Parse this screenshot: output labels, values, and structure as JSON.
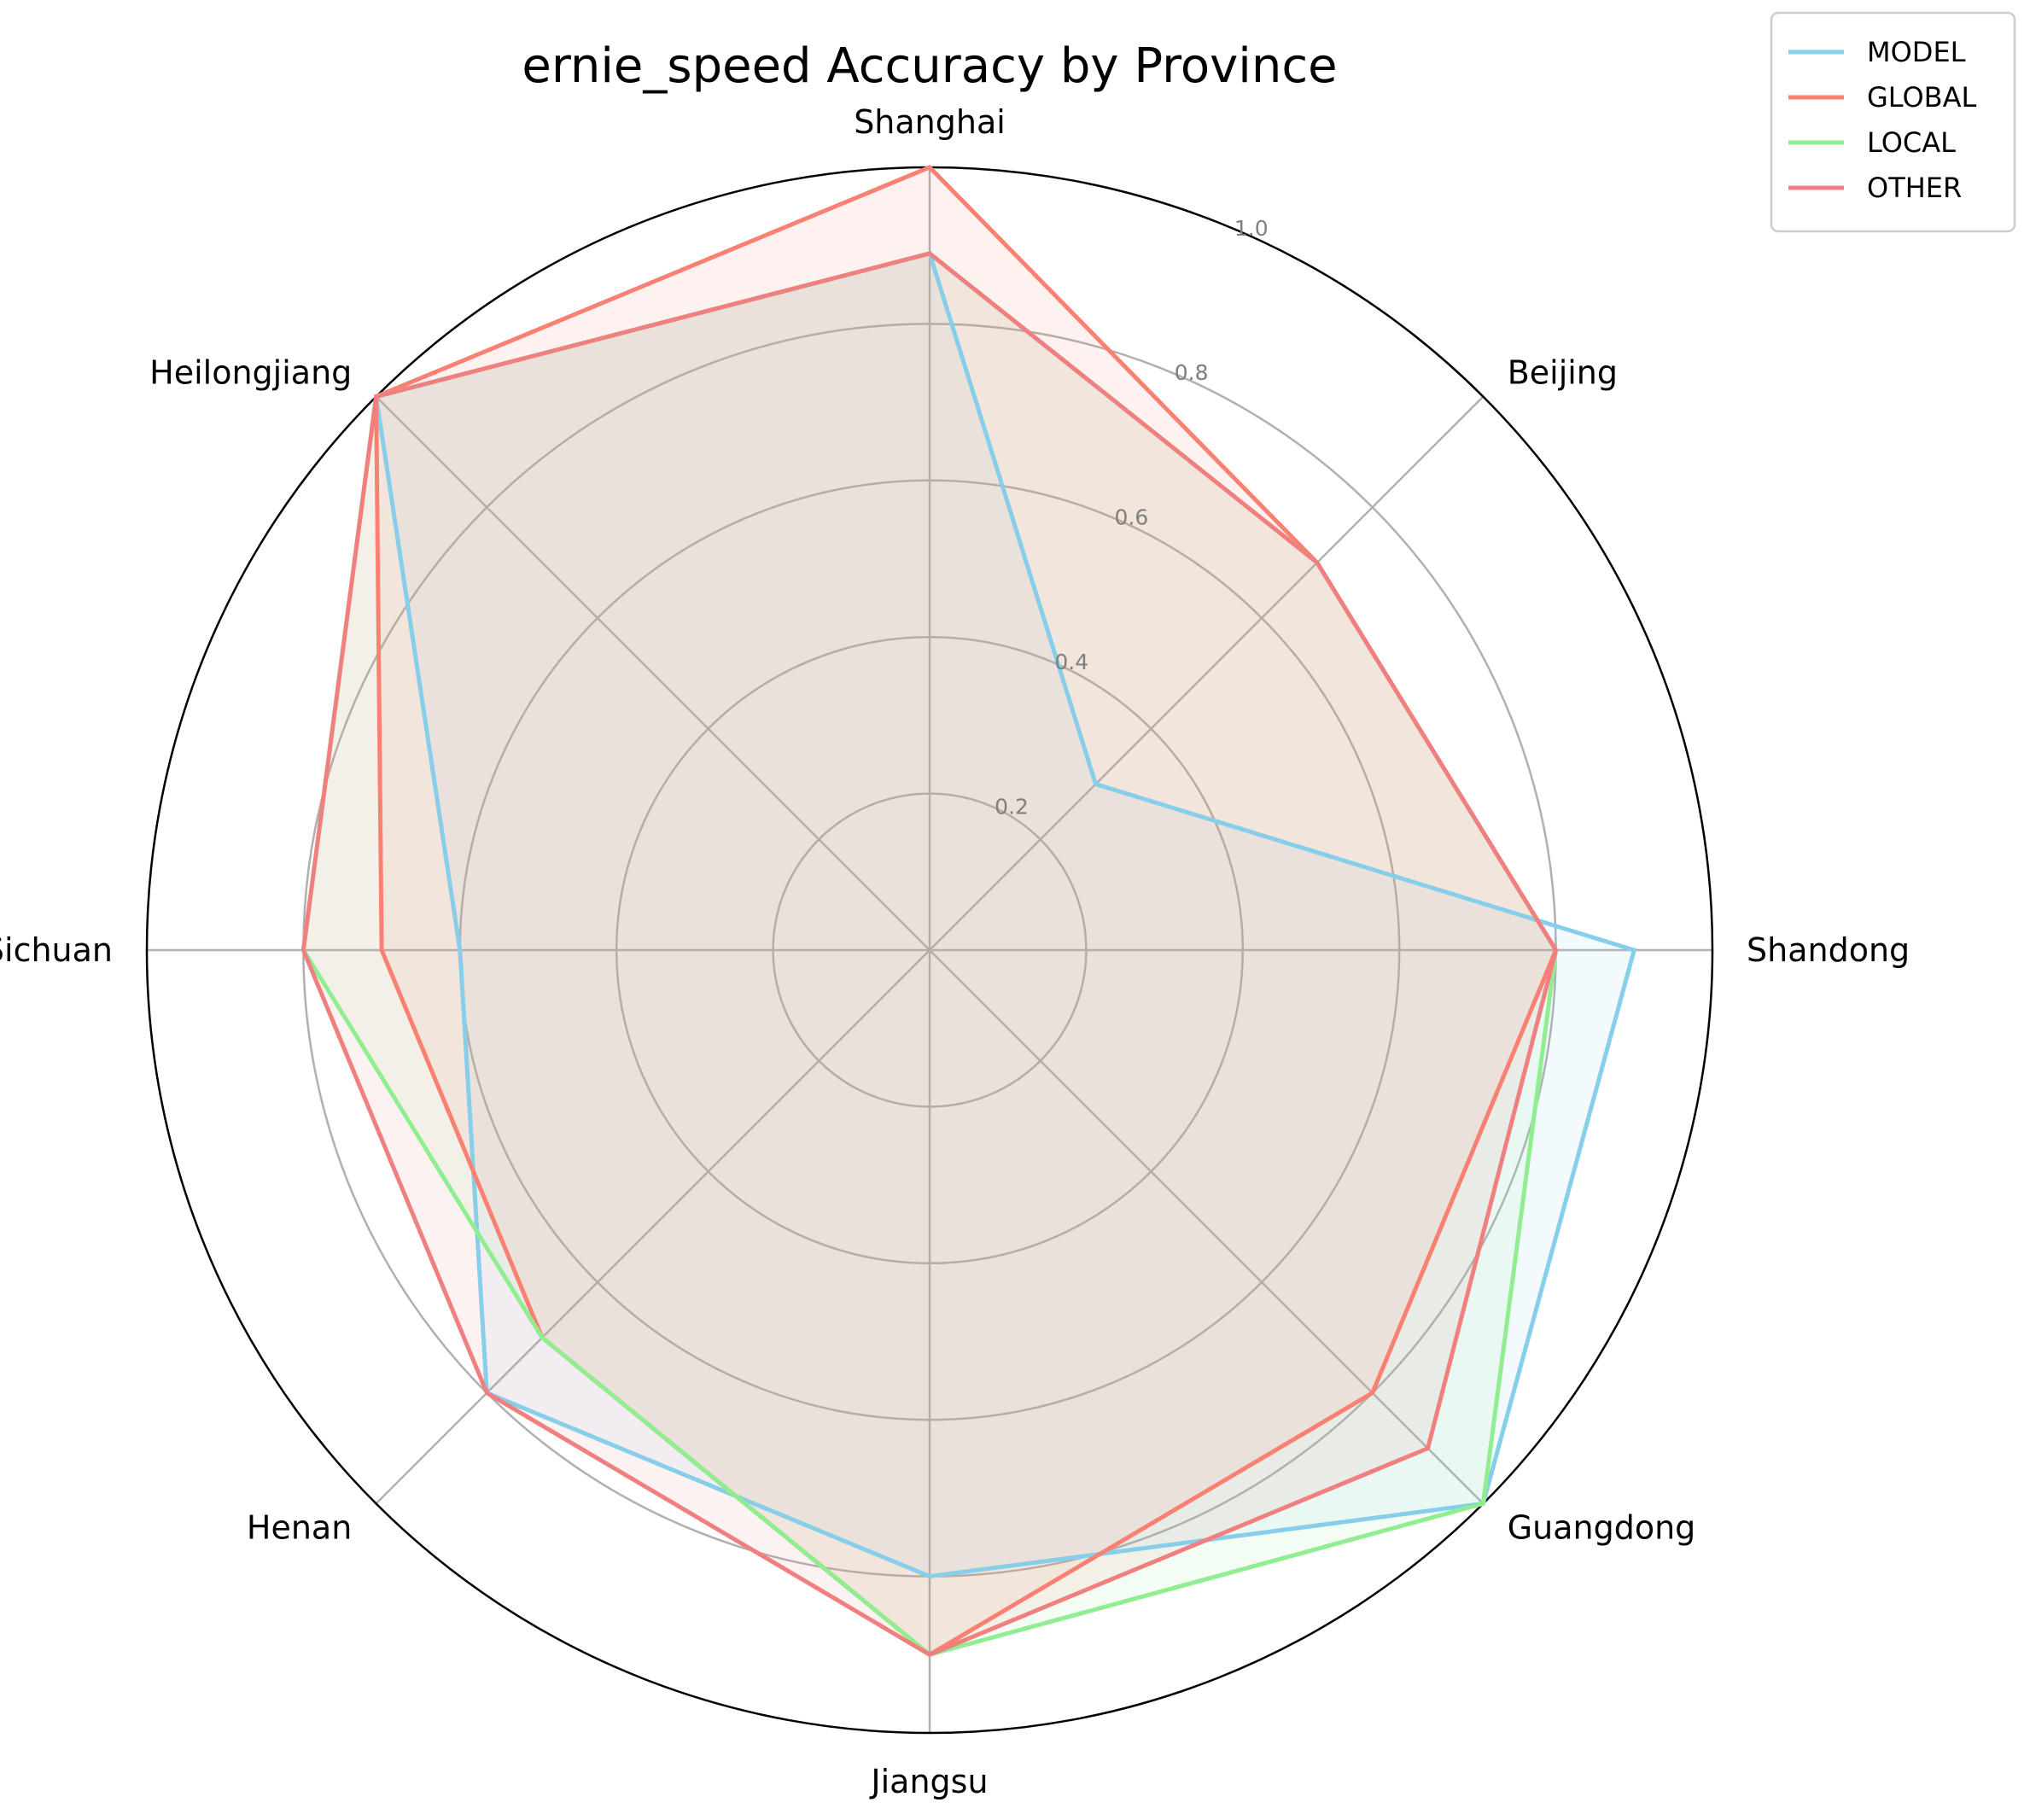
{
  "chart_data": {
    "type": "radar",
    "title": "ernie_speed Accuracy by Province",
    "categories": [
      "Shandong",
      "Beijing",
      "Shanghai",
      "Heilongjiang",
      "Sichuan",
      "Henan",
      "Jiangsu",
      "Guangdong"
    ],
    "rlim": [
      0,
      1.0
    ],
    "rticks": [
      0.2,
      0.4,
      0.6,
      0.8,
      1.0
    ],
    "rtick_labels": [
      "0.2",
      "0.4",
      "0.6",
      "0.8",
      "1.0"
    ],
    "grid": true,
    "legend_position": "top-right",
    "series": [
      {
        "name": "MODEL",
        "color": "#87ceeb",
        "values": [
          0.9,
          0.3,
          0.89,
          1.0,
          0.6,
          0.8,
          0.8,
          1.0
        ]
      },
      {
        "name": "GLOBAL",
        "color": "#fa8072",
        "values": [
          0.8,
          0.7,
          1.0,
          1.0,
          0.7,
          0.7,
          0.9,
          0.8
        ]
      },
      {
        "name": "LOCAL",
        "color": "#90ee90",
        "values": [
          0.8,
          0.7,
          0.89,
          1.0,
          0.8,
          0.7,
          0.9,
          1.0
        ]
      },
      {
        "name": "OTHER",
        "color": "#f08080",
        "values": [
          0.8,
          0.7,
          0.89,
          1.0,
          0.8,
          0.8,
          0.9,
          0.9
        ]
      }
    ]
  }
}
